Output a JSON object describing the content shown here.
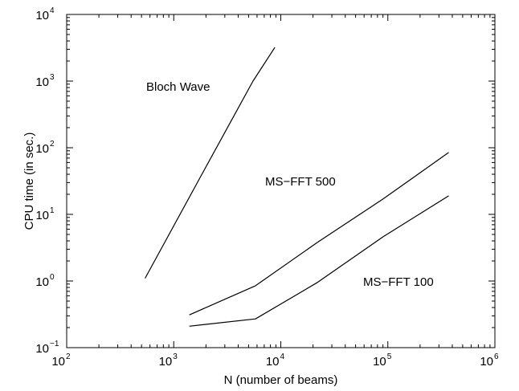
{
  "chart_data": {
    "type": "line",
    "xlabel": "N (number of beams)",
    "ylabel": "CPU time (in sec.)",
    "x_scale": "log",
    "y_scale": "log",
    "xlim": [
      100,
      1000000
    ],
    "ylim": [
      0.1,
      10000
    ],
    "x_ticks": [
      {
        "base": "10",
        "exp": "2"
      },
      {
        "base": "10",
        "exp": "3"
      },
      {
        "base": "10",
        "exp": "4"
      },
      {
        "base": "10",
        "exp": "5"
      },
      {
        "base": "10",
        "exp": "6"
      }
    ],
    "y_ticks": [
      {
        "base": "10",
        "exp": "−1"
      },
      {
        "base": "10",
        "exp": "0"
      },
      {
        "base": "10",
        "exp": "1"
      },
      {
        "base": "10",
        "exp": "2"
      },
      {
        "base": "10",
        "exp": "3"
      },
      {
        "base": "10",
        "exp": "4"
      }
    ],
    "grid": false,
    "legend": "none",
    "line_color": "#000000",
    "series": [
      {
        "name": "Bloch Wave",
        "x": [
          540,
          1800,
          5500,
          8800
        ],
        "y": [
          1.1,
          38,
          1000,
          3200
        ]
      },
      {
        "name": "MS−FFT 500",
        "x": [
          1400,
          5800,
          22000,
          90000,
          370000
        ],
        "y": [
          0.31,
          0.85,
          3.8,
          17,
          85
        ]
      },
      {
        "name": "MS−FFT 100",
        "x": [
          1400,
          5800,
          22000,
          90000,
          370000
        ],
        "y": [
          0.21,
          0.27,
          0.95,
          4.6,
          19
        ]
      }
    ]
  }
}
